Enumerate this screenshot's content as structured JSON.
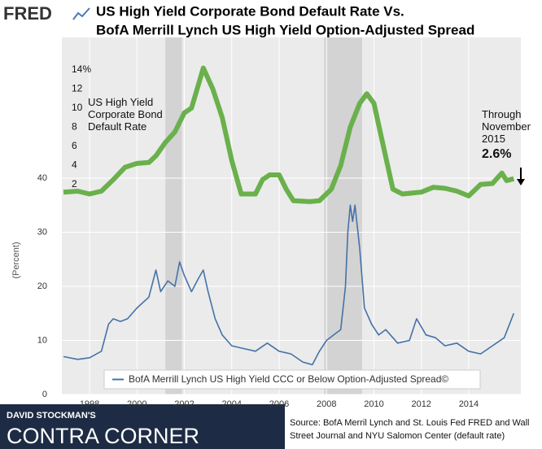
{
  "branding": {
    "logo": "FRED",
    "banner_top": "DAVID STOCKMAN'S",
    "banner_main": "CONTRA CORNER"
  },
  "source": "Source: BofA Merril Lynch and St. Louis Fed FRED and Wall Street Journal and  NYU Salomon Center (default rate)",
  "chart_data": {
    "type": "line",
    "title_lines": [
      "US High Yield Corporate Bond Default Rate Vs.",
      "BofA Merrill Lynch US High Yield Option-Adjusted Spread"
    ],
    "ylabel": "(Percent)",
    "xlim": [
      1996.83,
      2016.2
    ],
    "xticks": [
      1998,
      2000,
      2002,
      2004,
      2006,
      2008,
      2010,
      2012,
      2014
    ],
    "ylim": [
      0,
      66
    ],
    "yticks": [
      0,
      10,
      20,
      30,
      40
    ],
    "y2lim": [
      -20,
      17.4
    ],
    "y2ticks": [
      2,
      4,
      6,
      8,
      10,
      12,
      {
        "value": 14,
        "label": "14%"
      }
    ],
    "grid": true,
    "recessions": [
      [
        2001.2,
        2001.9
      ],
      [
        2007.9,
        2009.5
      ]
    ],
    "recession_color": "#d3d3d3",
    "series": [
      {
        "name": "BofA Merrill Lynch US High Yield CCC or Below Option-Adjusted Spread©",
        "color": "#4572a7",
        "x": [
          1996.9,
          1997.5,
          1998.0,
          1998.5,
          1998.8,
          1999.0,
          1999.3,
          1999.6,
          2000.0,
          2000.5,
          2000.8,
          2001.0,
          2001.3,
          2001.6,
          2001.8,
          2002.0,
          2002.3,
          2002.6,
          2002.8,
          2003.0,
          2003.3,
          2003.6,
          2004.0,
          2004.5,
          2005.0,
          2005.5,
          2006.0,
          2006.5,
          2007.0,
          2007.4,
          2007.7,
          2008.0,
          2008.3,
          2008.6,
          2008.8,
          2008.9,
          2009.0,
          2009.1,
          2009.2,
          2009.4,
          2009.6,
          2009.9,
          2010.2,
          2010.5,
          2011.0,
          2011.5,
          2011.8,
          2012.2,
          2012.6,
          2013.0,
          2013.5,
          2014.0,
          2014.5,
          2015.0,
          2015.5,
          2015.9
        ],
        "values": [
          7.0,
          6.5,
          6.8,
          8,
          13,
          14,
          13.5,
          14,
          16,
          18,
          23,
          19,
          21,
          20,
          24.5,
          22,
          19,
          21.5,
          23,
          19,
          14,
          11,
          9,
          8.5,
          8,
          9.5,
          8,
          7.5,
          6,
          5.5,
          8,
          10,
          11,
          12,
          20,
          30,
          35,
          32,
          35,
          27,
          16,
          13,
          11,
          12,
          9.5,
          10,
          14,
          11,
          10.5,
          9,
          9.5,
          8,
          7.5,
          9,
          10.5,
          15
        ]
      },
      {
        "name": "US High Yield Corporate Bond Default Rate",
        "color": "#6ab04c",
        "axis": "y2",
        "x": [
          1996.9,
          1997.5,
          1998.0,
          1998.5,
          1999.0,
          1999.5,
          2000.0,
          2000.5,
          2000.8,
          2001.2,
          2001.6,
          2002.0,
          2002.3,
          2002.6,
          2002.8,
          2003.2,
          2003.6,
          2004.0,
          2004.4,
          2005.0,
          2005.3,
          2005.6,
          2006.0,
          2006.3,
          2006.6,
          2007.3,
          2007.7,
          2008.2,
          2008.6,
          2009.0,
          2009.4,
          2009.7,
          2010.0,
          2010.4,
          2010.8,
          2011.2,
          2012.0,
          2012.5,
          2013.0,
          2013.5,
          2014.0,
          2014.5,
          2015.0,
          2015.4,
          2015.6,
          2015.9
        ],
        "values": [
          1.2,
          1.3,
          1.0,
          1.3,
          2.5,
          3.8,
          4.2,
          4.3,
          5,
          6.4,
          7.5,
          9.5,
          10.0,
          12.5,
          14.2,
          12,
          9,
          4.5,
          1.0,
          1.0,
          2.5,
          3.0,
          3.0,
          1.5,
          0.3,
          0.2,
          0.3,
          1.5,
          4,
          8,
          10.5,
          11.5,
          10.5,
          6,
          1.5,
          1.0,
          1.2,
          1.7,
          1.6,
          1.3,
          0.8,
          2,
          2.1,
          3.2,
          2.4,
          2.6
        ]
      }
    ],
    "end_note": "Through November 2015",
    "end_label": "2.6%"
  }
}
